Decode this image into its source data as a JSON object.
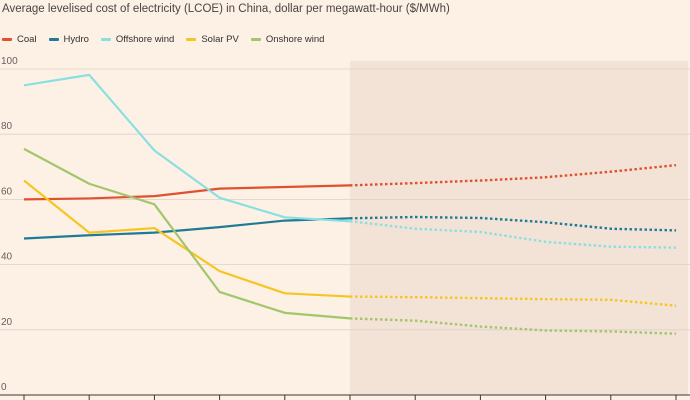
{
  "chart_data": {
    "type": "line",
    "title": "Average levelised cost of electricity (LCOE) in China, dollar per megawatt-hour ($/MWh)",
    "xlabel": "",
    "ylabel": "",
    "ylim": [
      0,
      100
    ],
    "yticks": [
      0,
      20,
      40,
      60,
      80,
      100
    ],
    "x": [
      0,
      1,
      2,
      3,
      4,
      5,
      6,
      7,
      8,
      9,
      10
    ],
    "forecast_start_index": 5,
    "grid": true,
    "legend": "top-left",
    "series": [
      {
        "name": "Coal",
        "color": "#e0512f",
        "values": [
          60,
          60.3,
          61,
          63.3,
          63.8,
          64.3,
          65,
          65.8,
          66.8,
          68.5,
          70.5
        ]
      },
      {
        "name": "Hydro",
        "color": "#1f7a95",
        "values": [
          48,
          49,
          49.8,
          51.5,
          53.5,
          54.2,
          54.6,
          54.3,
          53,
          51,
          50.5
        ]
      },
      {
        "name": "Offshore wind",
        "color": "#8ae0e0",
        "values": [
          95,
          98.2,
          75,
          60.5,
          54.5,
          53.3,
          51,
          50,
          47,
          45.5,
          45.2
        ]
      },
      {
        "name": "Solar PV",
        "color": "#f6c522",
        "values": [
          65.8,
          49.8,
          51.2,
          38,
          31.2,
          30.2,
          30,
          29.7,
          29.4,
          29.2,
          27.4
        ]
      },
      {
        "name": "Onshore wind",
        "color": "#a2c66a",
        "values": [
          75.5,
          64.8,
          58.5,
          31.6,
          25.2,
          23.5,
          22.8,
          21,
          19.8,
          19.5,
          18.8
        ]
      }
    ]
  }
}
